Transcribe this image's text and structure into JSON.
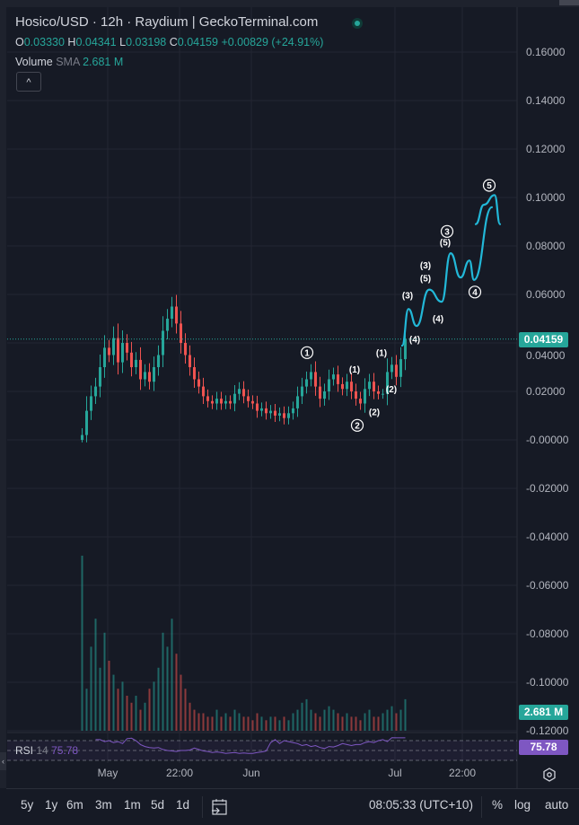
{
  "header": {
    "title": "Hosico/USD · 12h · Raydium | GeckoTerminal.com",
    "ohlc": {
      "o_label": "O",
      "o": "0.03330",
      "h_label": "H",
      "h": "0.04341",
      "l_label": "L",
      "l": "0.03198",
      "c_label": "C",
      "c": "0.04159",
      "change": "+0.00829 (+24.91%)"
    },
    "volume": {
      "label": "Volume",
      "sub": "SMA",
      "value": "2.681 M"
    },
    "toggle_icon": "chevron-up-icon"
  },
  "colors": {
    "up": "#26a69a",
    "down": "#ef5350",
    "wave": "#22b8d8",
    "rsi": "#7e57c2",
    "background": "#161a25",
    "grid": "#232632"
  },
  "price_axis": {
    "ticks": [
      "0.16000",
      "0.14000",
      "0.12000",
      "0.10000",
      "0.08000",
      "0.06000",
      "0.04000",
      "0.02000",
      "-0.00000",
      "-0.02000",
      "-0.04000",
      "-0.06000",
      "-0.08000",
      "-0.10000",
      "-0.12000"
    ],
    "tick_values": [
      0.16,
      0.14,
      0.12,
      0.1,
      0.08,
      0.06,
      0.04,
      0.02,
      0,
      -0.02,
      -0.04,
      -0.06,
      -0.08,
      -0.1,
      -0.12
    ],
    "last_price": "0.04159",
    "last_price_value": 0.04159,
    "volume_badge": "2.681 M",
    "rsi_badge": "75.78"
  },
  "time_axis": {
    "ticks": [
      {
        "label": "May",
        "index": 6
      },
      {
        "label": "22:00",
        "index": 22
      },
      {
        "label": "Jun",
        "index": 38
      },
      {
        "label": "Jul",
        "index": 70
      },
      {
        "label": "22:00",
        "index": 85
      }
    ]
  },
  "rsi": {
    "label": "RSI",
    "period": "14",
    "value": "75.78"
  },
  "chart_data": {
    "type": "candlestick",
    "interval": "12h",
    "ylim": [
      -0.12,
      0.16
    ],
    "closes": [
      0.002,
      0.012,
      0.018,
      0.022,
      0.03,
      0.038,
      0.035,
      0.042,
      0.032,
      0.04,
      0.036,
      0.03,
      0.033,
      0.025,
      0.028,
      0.024,
      0.03,
      0.035,
      0.045,
      0.05,
      0.055,
      0.048,
      0.04,
      0.035,
      0.03,
      0.025,
      0.022,
      0.018,
      0.016,
      0.015,
      0.017,
      0.015,
      0.016,
      0.015,
      0.019,
      0.021,
      0.018,
      0.016,
      0.015,
      0.012,
      0.013,
      0.011,
      0.012,
      0.01,
      0.011,
      0.009,
      0.011,
      0.013,
      0.018,
      0.022,
      0.025,
      0.028,
      0.022,
      0.017,
      0.02,
      0.025,
      0.027,
      0.023,
      0.021,
      0.024,
      0.02,
      0.017,
      0.015,
      0.021,
      0.024,
      0.02,
      0.019,
      0.019,
      0.028,
      0.031,
      0.026,
      0.0333,
      0.04159
    ],
    "volumes_m": [
      25,
      6,
      12,
      16,
      9,
      14,
      10,
      8,
      6,
      7,
      5,
      4,
      5,
      3,
      4,
      6,
      7,
      9,
      14,
      12,
      16,
      11,
      8,
      6,
      4,
      3,
      2.5,
      2.5,
      2,
      2,
      3,
      2,
      2.5,
      2,
      3,
      2.5,
      2,
      2,
      1.5,
      2.5,
      2,
      1.5,
      2,
      2,
      1.5,
      2,
      1.5,
      2.5,
      3,
      4,
      4.5,
      3,
      2.5,
      2,
      3,
      3.5,
      3,
      2.5,
      2,
      2.5,
      2,
      2,
      1.5,
      2.5,
      3,
      2,
      2,
      2.5,
      3,
      3.5,
      2.5,
      3,
      4.5
    ],
    "rsi_values": [
      null,
      null,
      null,
      72,
      72,
      68,
      70,
      66,
      68,
      64,
      74,
      75,
      70,
      62,
      58,
      56,
      55,
      56,
      52,
      50,
      49,
      48,
      50,
      50,
      51,
      55,
      52,
      49,
      48,
      46,
      47,
      46,
      44,
      45,
      46,
      44,
      45,
      44,
      44,
      46,
      47,
      49,
      66,
      72,
      64,
      70,
      68,
      66,
      64,
      60,
      62,
      58,
      60,
      56,
      54,
      58,
      57,
      60,
      64,
      62,
      60,
      62,
      62,
      66,
      68,
      66,
      70,
      72,
      68,
      76,
      75.78,
      75.78,
      75.78
    ],
    "elliott_wave_path": [
      [
        71.6,
        0.0389
      ],
      [
        73,
        0.054
      ],
      [
        74.8,
        0.047
      ],
      [
        77.6,
        0.062
      ],
      [
        80.4,
        0.057
      ],
      [
        82.4,
        0.077
      ],
      [
        84.6,
        0.067
      ],
      [
        86.6,
        0.074
      ],
      [
        87.6,
        0.066
      ],
      [
        91.6,
        0.096
      ]
    ],
    "elliott_wave_path2": [
      [
        88,
        0.089
      ],
      [
        89.8,
        0.097
      ],
      [
        92.2,
        0.101
      ],
      [
        93.4,
        0.089
      ]
    ],
    "wave_labels": [
      {
        "t": "1",
        "circled": true,
        "i": 50.4,
        "p": 0.036
      },
      {
        "t": "(1)",
        "circled": false,
        "i": 61,
        "p": 0.029
      },
      {
        "t": "2",
        "circled": true,
        "i": 61.6,
        "p": 0.006
      },
      {
        "t": "(2)",
        "circled": false,
        "i": 65.4,
        "p": 0.0115
      },
      {
        "t": "(1)",
        "circled": false,
        "i": 67,
        "p": 0.036
      },
      {
        "t": "(2)",
        "circled": false,
        "i": 69.2,
        "p": 0.021
      },
      {
        "t": "(4)",
        "circled": false,
        "i": 74.4,
        "p": 0.0415
      },
      {
        "t": "(3)",
        "circled": false,
        "i": 72.8,
        "p": 0.0596
      },
      {
        "t": "(4)",
        "circled": false,
        "i": 79.6,
        "p": 0.05
      },
      {
        "t": "(5)",
        "circled": false,
        "i": 76.8,
        "p": 0.0667
      },
      {
        "t": "(3)",
        "circled": false,
        "i": 76.8,
        "p": 0.072
      },
      {
        "t": "(5)",
        "circled": false,
        "i": 81.2,
        "p": 0.0815
      },
      {
        "t": "3",
        "circled": true,
        "i": 81.6,
        "p": 0.086
      },
      {
        "t": "4",
        "circled": true,
        "i": 87.8,
        "p": 0.061
      },
      {
        "t": "5",
        "circled": true,
        "i": 91,
        "p": 0.105
      }
    ]
  },
  "bottom_bar": {
    "ranges": [
      "5y",
      "1y",
      "6m",
      "3m",
      "1m",
      "5d",
      "1d"
    ],
    "goto_icon": "calendar-goto-icon",
    "clock": "08:05:33 (UTC+10)",
    "percent": "%",
    "log": "log",
    "auto": "auto"
  }
}
